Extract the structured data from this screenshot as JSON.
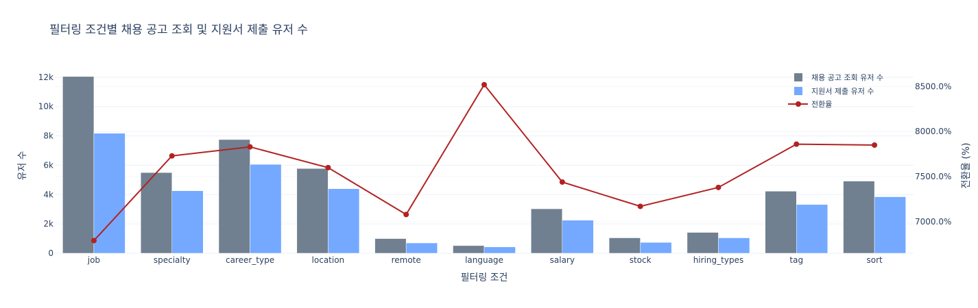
{
  "chart_data": {
    "type": "bar",
    "title": "필터링 조건별 채용 공고 조회 및 지원서 제출 유저 수",
    "xlabel": "필터링 조건",
    "ylabel": "유저 수",
    "y2label": "전환율 (%)",
    "categories": [
      "job",
      "specialty",
      "career_type",
      "location",
      "remote",
      "language",
      "salary",
      "stock",
      "hiring_types",
      "tag",
      "sort"
    ],
    "ylim": [
      0,
      12600
    ],
    "y2lim": [
      6650,
      8700
    ],
    "yticks": [
      0,
      2000,
      4000,
      6000,
      8000,
      10000,
      12000
    ],
    "yticklabels": [
      "0",
      "2k",
      "4k",
      "6k",
      "8k",
      "10k",
      "12k"
    ],
    "y2ticks": [
      7000,
      7500,
      8000,
      8500
    ],
    "y2ticklabels": [
      "7000.0%",
      "7500.0%",
      "8000.0%",
      "8500.0%"
    ],
    "grid": true,
    "legend_position": "top-right",
    "series": [
      {
        "name": "채용 공고 조회 유저 수",
        "type": "bar",
        "color": "#708090",
        "values": [
          12050,
          5500,
          7750,
          5780,
          1000,
          520,
          3030,
          1050,
          1420,
          4230,
          4920
        ]
      },
      {
        "name": "지원서 제출 유저 수",
        "type": "bar",
        "color": "#74a9ff",
        "values": [
          8180,
          4260,
          6060,
          4400,
          700,
          430,
          2250,
          740,
          1050,
          3320,
          3850
        ]
      },
      {
        "name": "전환율",
        "type": "line",
        "axis": "y2",
        "color": "#b22222",
        "values": [
          6790,
          7730,
          7830,
          7600,
          7080,
          8520,
          7440,
          7170,
          7380,
          7860,
          7850
        ]
      }
    ]
  }
}
